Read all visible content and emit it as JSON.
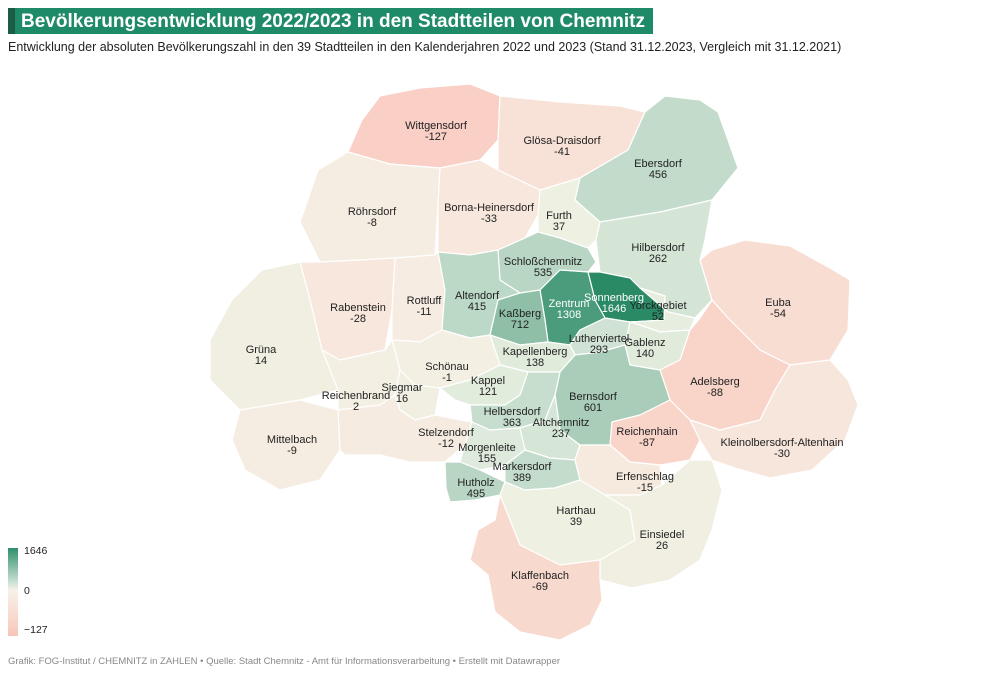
{
  "title": "Bevölkerungsentwicklung 2022/2023 in den Stadtteilen von Chemnitz",
  "subtitle": "Entwicklung der absoluten Bevölkerungszahl in den 39 Stadtteilen in den Kalenderjahren 2022 und 2023 (Stand 31.12.2023, Vergleich mit 31.12.2021)",
  "legend": {
    "max": "1646",
    "mid": "0",
    "min": "−127"
  },
  "footer": "Grafik: FOG-Institut / CHEMNITZ in ZAHLEN • Quelle: Stadt Chemnitz - Amt für Informationsverarbeitung • Erstellt mit Datawrapper",
  "colors": {
    "strong_pos": "#2f8f6b",
    "high_pos": "#7fb59b",
    "mid_pos": "#b6d3c2",
    "low_pos": "#dde9dc",
    "neutral": "#f4f0e3",
    "low_neg": "#f8e6dc",
    "mid_neg": "#fad3c8",
    "high_neg": "#f7c0b3",
    "border": "#ffffff"
  },
  "districts": [
    {
      "id": "wittgensdorf",
      "name": "Wittgensdorf",
      "value": "-127",
      "fill": "#f9cfc6"
    },
    {
      "id": "gloesa",
      "name": "Glösa-Draisdorf",
      "value": "-41",
      "fill": "#f8e2d8"
    },
    {
      "id": "ebersdorf",
      "name": "Ebersdorf",
      "value": "456",
      "fill": "#c3dbcb"
    },
    {
      "id": "roehrsdorf",
      "name": "Röhrsdorf",
      "value": "-8",
      "fill": "#f6ede2"
    },
    {
      "id": "borna",
      "name": "Borna-Heinersdorf",
      "value": "-33",
      "fill": "#f7e7dd"
    },
    {
      "id": "furth",
      "name": "Furth",
      "value": "37",
      "fill": "#eef0e2"
    },
    {
      "id": "hilbersdorf",
      "name": "Hilbersdorf",
      "value": "262",
      "fill": "#d4e5d6"
    },
    {
      "id": "schlosschemnitz",
      "name": "Schloßchemnitz",
      "value": "535",
      "fill": "#b8d6c3"
    },
    {
      "id": "sonnenberg",
      "name": "Sonnenberg",
      "value": "1646",
      "fill": "#2a8a66"
    },
    {
      "id": "euba",
      "name": "Euba",
      "value": "-54",
      "fill": "#f8ddd2"
    },
    {
      "id": "rabenstein",
      "name": "Rabenstein",
      "value": "-28",
      "fill": "#f7e7dd"
    },
    {
      "id": "rottluff",
      "name": "Rottluff",
      "value": "-11",
      "fill": "#f6ece1"
    },
    {
      "id": "altendorf",
      "name": "Altendorf",
      "value": "415",
      "fill": "#bcd8c6"
    },
    {
      "id": "zentrum",
      "name": "Zentrum",
      "value": "1308",
      "fill": "#4a9c7c"
    },
    {
      "id": "kassberg",
      "name": "Kaßberg",
      "value": "712",
      "fill": "#8fbfa6"
    },
    {
      "id": "yorckgebiet",
      "name": "Yorckgebiet",
      "value": "52",
      "fill": "#e8eedf"
    },
    {
      "id": "gruena",
      "name": "Grüna",
      "value": "14",
      "fill": "#f1efe2"
    },
    {
      "id": "lutherviertel",
      "name": "Lutherviertel",
      "value": "293",
      "fill": "#cfe2d3"
    },
    {
      "id": "gablenz",
      "name": "Gablenz",
      "value": "140",
      "fill": "#e0ebdc"
    },
    {
      "id": "kapellenberg",
      "name": "Kapellenberg",
      "value": "138",
      "fill": "#e0ebdc"
    },
    {
      "id": "schoenau",
      "name": "Schönau",
      "value": "-1",
      "fill": "#f4efe3"
    },
    {
      "id": "adelsberg",
      "name": "Adelsberg",
      "value": "-88",
      "fill": "#f9d4c9"
    },
    {
      "id": "reichenbrand",
      "name": "Reichenbrand",
      "value": "2",
      "fill": "#f3efe2"
    },
    {
      "id": "siegmar",
      "name": "Siegmar",
      "value": "16",
      "fill": "#f0efe2"
    },
    {
      "id": "kappel",
      "name": "Kappel",
      "value": "121",
      "fill": "#e2ecdd"
    },
    {
      "id": "bernsdorf",
      "name": "Bernsdorf",
      "value": "601",
      "fill": "#a9cdb8"
    },
    {
      "id": "helbersdorf",
      "name": "Helbersdorf",
      "value": "363",
      "fill": "#c7ddcd"
    },
    {
      "id": "mittelbach",
      "name": "Mittelbach",
      "value": "-9",
      "fill": "#f6ede2"
    },
    {
      "id": "stelzendorf",
      "name": "Stelzendorf",
      "value": "-12",
      "fill": "#f6ebe0"
    },
    {
      "id": "altchemnitz",
      "name": "Altchemnitz",
      "value": "237",
      "fill": "#d6e6d6"
    },
    {
      "id": "reichenhain",
      "name": "Reichenhain",
      "value": "-87",
      "fill": "#f9d4c9"
    },
    {
      "id": "kleinolbersdorf",
      "name": "Kleinolbersdorf-Altenhain",
      "value": "-30",
      "fill": "#f7e6dc"
    },
    {
      "id": "morgenleite",
      "name": "Morgenleite",
      "value": "155",
      "fill": "#deeadb"
    },
    {
      "id": "markersdorf",
      "name": "Markersdorf",
      "value": "389",
      "fill": "#c4dccb"
    },
    {
      "id": "erfenschlag",
      "name": "Erfenschlag",
      "value": "-15",
      "fill": "#f6eadf"
    },
    {
      "id": "hutholz",
      "name": "Hutholz",
      "value": "495",
      "fill": "#b9d6c4"
    },
    {
      "id": "harthau",
      "name": "Harthau",
      "value": "39",
      "fill": "#eef0e2"
    },
    {
      "id": "einsiedel",
      "name": "Einsiedel",
      "value": "26",
      "fill": "#f0efe2"
    },
    {
      "id": "klaffenbach",
      "name": "Klaffenbach",
      "value": "-69",
      "fill": "#f8d9ce"
    }
  ]
}
